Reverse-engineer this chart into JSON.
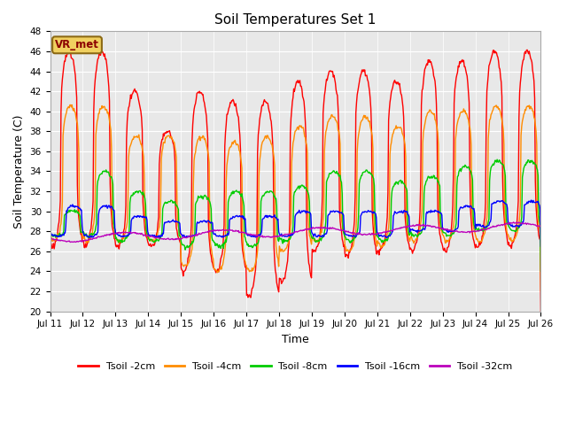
{
  "title": "Soil Temperatures Set 1",
  "xlabel": "Time",
  "ylabel": "Soil Temperature (C)",
  "ylim": [
    20,
    48
  ],
  "yticks": [
    20,
    22,
    24,
    26,
    28,
    30,
    32,
    34,
    36,
    38,
    40,
    42,
    44,
    46,
    48
  ],
  "xtick_labels": [
    "Jul 11",
    "Jul 12",
    "Jul 13",
    "Jul 14",
    "Jul 15",
    "Jul 16",
    "Jul 17",
    "Jul 18",
    "Jul 19",
    "Jul 20",
    "Jul 21",
    "Jul 22",
    "Jul 23",
    "Jul 24",
    "Jul 25",
    "Jul 26"
  ],
  "colors": {
    "Tsoil -2cm": "#ff0000",
    "Tsoil -4cm": "#ff8c00",
    "Tsoil -8cm": "#00cc00",
    "Tsoil -16cm": "#0000ff",
    "Tsoil -32cm": "#bb00bb"
  },
  "background_color": "#e8e8e8",
  "grid_color": "#ffffff",
  "annotation_text": "VR_met",
  "n_days": 15,
  "samples_per_day": 48
}
